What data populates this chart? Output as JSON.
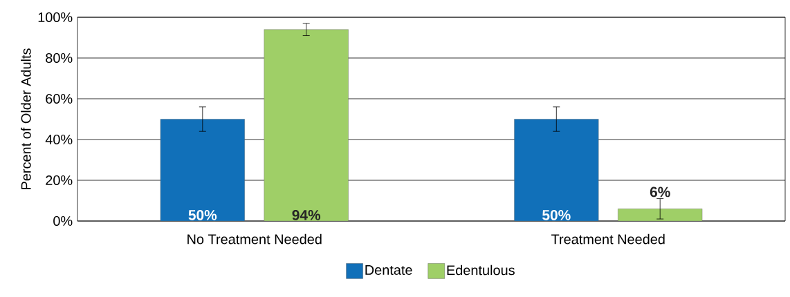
{
  "chart_data": {
    "type": "bar",
    "ylabel": "Percent of Older Adults",
    "categories": [
      "No Treatment Needed",
      "Treatment Needed"
    ],
    "series": [
      {
        "name": "Dentate",
        "color": "#1170b9",
        "values": [
          50,
          50
        ],
        "errors": [
          6,
          6
        ],
        "value_labels": [
          "50%",
          "50%"
        ]
      },
      {
        "name": "Edentulous",
        "color": "#9fcf67",
        "values": [
          94,
          6
        ],
        "errors": [
          3,
          5
        ],
        "value_labels": [
          "94%",
          "6%"
        ]
      }
    ],
    "ylim": [
      0,
      100
    ],
    "yticks": [
      {
        "value": 0,
        "label": "0%"
      },
      {
        "value": 20,
        "label": "20%"
      },
      {
        "value": 40,
        "label": "40%"
      },
      {
        "value": 60,
        "label": "60%"
      },
      {
        "value": 80,
        "label": "80%"
      },
      {
        "value": 100,
        "label": "100%"
      }
    ],
    "grid": "y",
    "legend": "bottom"
  }
}
